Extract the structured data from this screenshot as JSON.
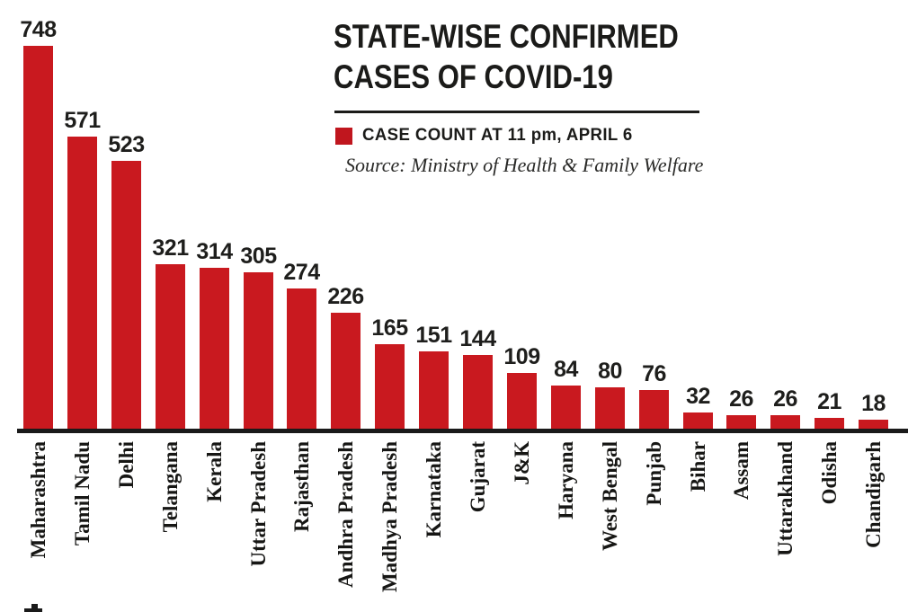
{
  "header": {
    "title_line1": "STATE-WISE CONFIRMED",
    "title_line2": "CASES OF COVID-19",
    "legend_label": "CASE COUNT AT 11 pm, APRIL 6",
    "source": "Source: Ministry of Health & Family Welfare"
  },
  "colors": {
    "bar": "#c9191f",
    "legend_swatch": "#c0161e",
    "text": "#1b1b19",
    "axis": "#1a1a1a"
  },
  "chart_data": {
    "type": "bar",
    "title": "STATE-WISE CONFIRMED CASES OF COVID-19",
    "legend": "CASE COUNT AT 11 pm, APRIL 6",
    "source": "Source: Ministry of Health & Family Welfare",
    "categories": [
      "Maharashtra",
      "Tamil Nadu",
      "Delhi",
      "Telangana",
      "Kerala",
      "Uttar Pradesh",
      "Rajasthan",
      "Andhra Pradesh",
      "Madhya Pradesh",
      "Karnataka",
      "Gujarat",
      "J&K",
      "Haryana",
      "West Bengal",
      "Punjab",
      "Bihar",
      "Assam",
      "Uttarakhand",
      "Odisha",
      "Chandigarh"
    ],
    "values": [
      748,
      571,
      523,
      321,
      314,
      305,
      274,
      226,
      165,
      151,
      144,
      109,
      84,
      80,
      76,
      32,
      26,
      26,
      21,
      18
    ],
    "xlabel": "",
    "ylabel": "",
    "ylim": [
      0,
      780
    ],
    "grid": false,
    "value_labels": "above-bars",
    "legend_position": "header",
    "bar_color": "#c9191f"
  }
}
